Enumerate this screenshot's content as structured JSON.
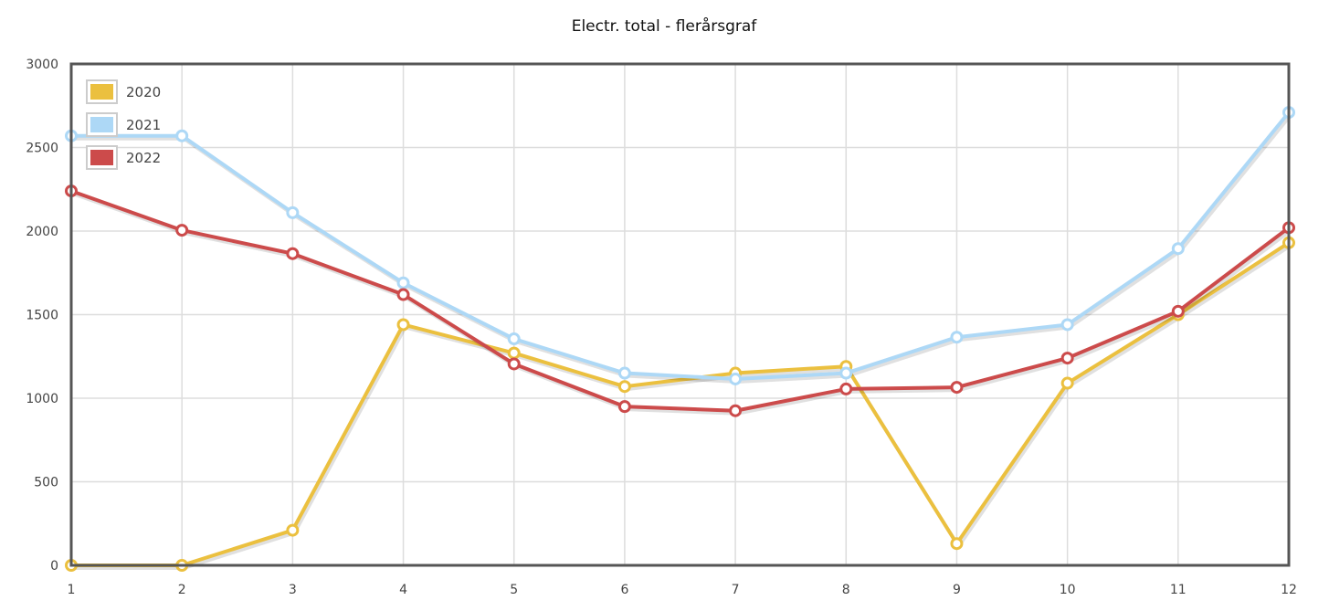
{
  "chart_data": {
    "type": "line",
    "title": "Electr. total - flerårsgraf",
    "xlabel": "",
    "ylabel": "",
    "x": [
      1,
      2,
      3,
      4,
      5,
      6,
      7,
      8,
      9,
      10,
      11,
      12
    ],
    "x_tick_labels": [
      "1",
      "2",
      "3",
      "4",
      "5",
      "6",
      "7",
      "8",
      "9",
      "10",
      "11",
      "12"
    ],
    "y_tick_labels": [
      "0",
      "500",
      "1000",
      "1500",
      "2000",
      "2500",
      "3000"
    ],
    "y_ticks": [
      0,
      500,
      1000,
      1500,
      2000,
      2500,
      3000
    ],
    "ylim": [
      0,
      3000
    ],
    "grid": true,
    "legend_position": "top-left",
    "series": [
      {
        "name": "2020",
        "color": "#EBC03F",
        "values": [
          0,
          0,
          210,
          1440,
          1270,
          1070,
          1150,
          1190,
          130,
          1090,
          1500,
          1930
        ]
      },
      {
        "name": "2021",
        "color": "#ADD8F6",
        "values": [
          2570,
          2570,
          2110,
          1690,
          1355,
          1150,
          1115,
          1150,
          1365,
          1440,
          1895,
          2710
        ]
      },
      {
        "name": "2022",
        "color": "#CC4B4B",
        "values": [
          2240,
          2005,
          1865,
          1620,
          1205,
          950,
          925,
          1055,
          1065,
          1240,
          1520,
          2020
        ]
      }
    ]
  }
}
